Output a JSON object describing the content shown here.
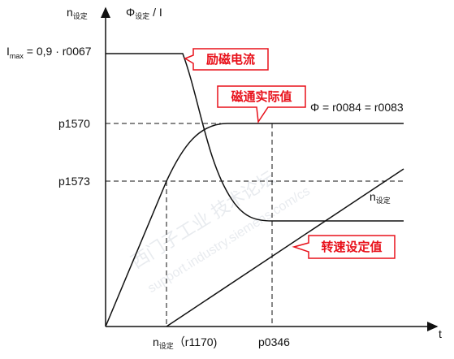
{
  "axes": {
    "y_label": {
      "main": "n",
      "sub": "设定"
    },
    "y_label_2": {
      "main": "Φ",
      "sub": "设定",
      "rest": " / I"
    },
    "x_label": "t"
  },
  "levels": {
    "imax": {
      "main": "I",
      "sub": "max",
      "rest": " = 0,9 · r0067"
    },
    "p1570": "p1570",
    "p1573": "p1573"
  },
  "x_marks": {
    "n_set": {
      "main": "n",
      "sub": "设定",
      "rest": "（r1170)"
    },
    "p0346": "p0346"
  },
  "curves": {
    "flux_formula": "Φ = r0084 = r0083",
    "speed_label": {
      "main": "n",
      "sub": "设定"
    }
  },
  "callouts": {
    "field_current": "励磁电流",
    "actual_flux": "磁通实际值",
    "speed_setpoint": "转速设定值"
  },
  "watermark": {
    "cn": "西门子工业 技术论坛",
    "url": "support.industry.siemens.com/cs"
  }
}
